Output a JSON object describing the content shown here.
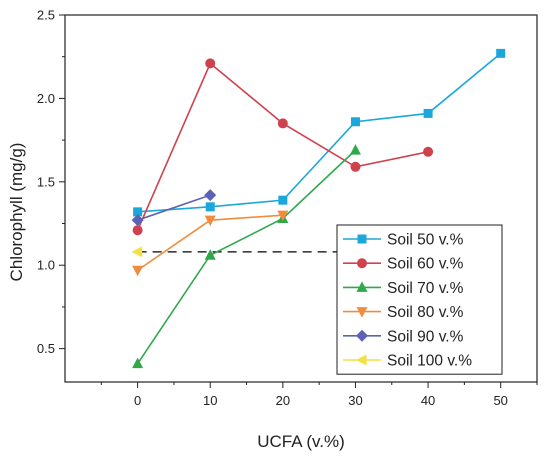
{
  "chart_data": {
    "type": "line",
    "title": "",
    "xlabel": "UCFA (v.%)",
    "ylabel": "Chlorophyll (mg/g)",
    "xlim": [
      -10,
      55
    ],
    "ylim": [
      0.3,
      2.5
    ],
    "xticks": [
      0,
      10,
      20,
      30,
      40,
      50
    ],
    "yticks": [
      0.5,
      1.0,
      1.5,
      2.0,
      2.5
    ],
    "xtick_labels": [
      "0",
      "10",
      "20",
      "30",
      "40",
      "50"
    ],
    "ytick_labels": [
      "0.5",
      "1.0",
      "1.5",
      "2.0",
      "2.5"
    ],
    "grid": false,
    "legend_position": "lower-right",
    "series": [
      {
        "name": "Soil 50 v.%",
        "color": "#1ba7dc",
        "marker": "square",
        "x": [
          0,
          10,
          20,
          30,
          40,
          50
        ],
        "y": [
          1.32,
          1.35,
          1.39,
          1.86,
          1.91,
          2.27
        ]
      },
      {
        "name": "Soil 60 v.%",
        "color": "#d0414e",
        "marker": "circle",
        "x": [
          0,
          10,
          20,
          30,
          40
        ],
        "y": [
          1.21,
          2.21,
          1.85,
          1.59,
          1.68
        ]
      },
      {
        "name": "Soil 70 v.%",
        "color": "#2fa84a",
        "marker": "triangle-up",
        "x": [
          0,
          10,
          20,
          30
        ],
        "y": [
          0.41,
          1.06,
          1.28,
          1.69
        ]
      },
      {
        "name": "Soil 80 v.%",
        "color": "#f08c3c",
        "marker": "triangle-down",
        "x": [
          0,
          10,
          20
        ],
        "y": [
          0.97,
          1.27,
          1.3
        ]
      },
      {
        "name": "Soil 90 v.%",
        "color": "#5c63b5",
        "marker": "diamond",
        "x": [
          0,
          10
        ],
        "y": [
          1.27,
          1.42
        ]
      },
      {
        "name": "Soil 100 v.%",
        "color": "#f5e042",
        "marker": "triangle-left",
        "x": [
          0
        ],
        "y": [
          1.08
        ]
      }
    ],
    "reference_line": {
      "y": 1.08,
      "x": [
        0,
        30
      ],
      "style": "dashed",
      "color": "#000000"
    }
  }
}
